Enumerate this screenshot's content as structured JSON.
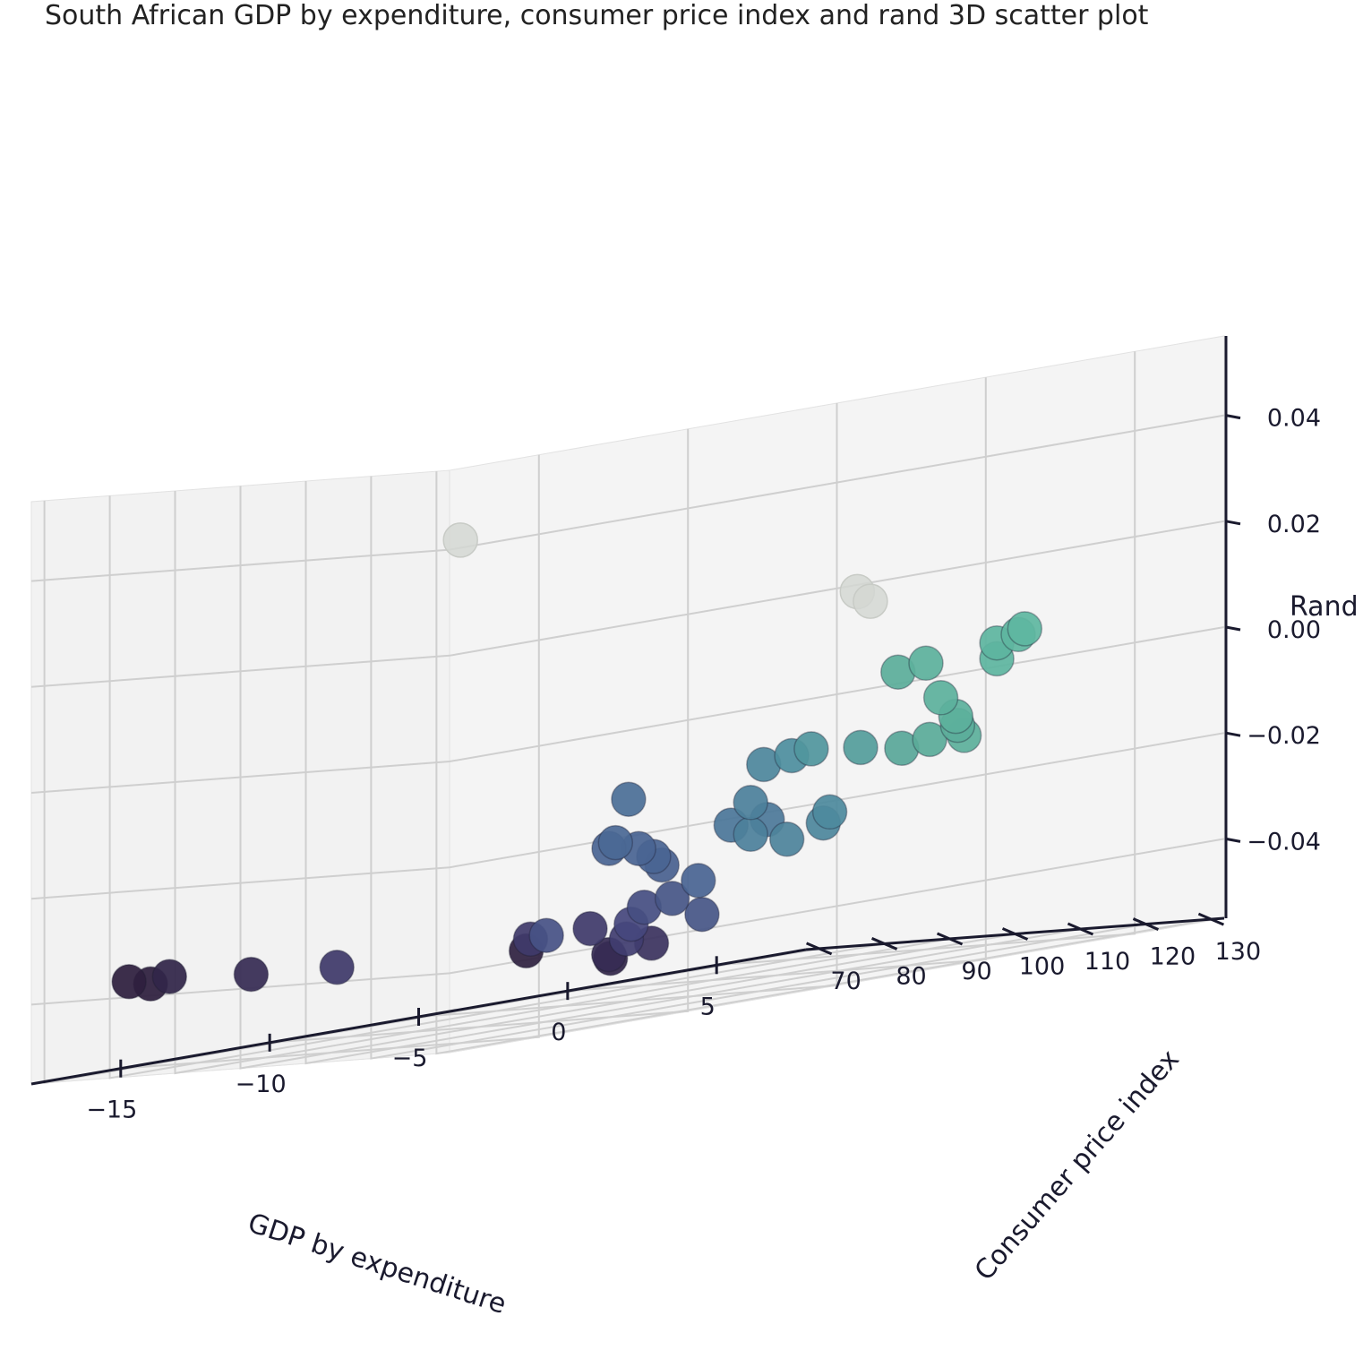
{
  "chart_data": {
    "type": "scatter",
    "projection": "3d",
    "title": "South African GDP by expenditure, consumer price index and rand 3D scatter plot",
    "xlabel": "GDP by expenditure",
    "ylabel": "Consumer price index",
    "zlabel": "Rand",
    "xlim": [
      -18,
      8
    ],
    "ylim": [
      68,
      132
    ],
    "zlim": [
      -0.055,
      0.055
    ],
    "xticks": [
      -15,
      -10,
      -5,
      0,
      5
    ],
    "yticks": [
      70,
      80,
      90,
      100,
      110,
      120,
      130
    ],
    "zticks": [
      -0.04,
      -0.02,
      0.0,
      0.02,
      0.04
    ],
    "xtick_labels": [
      "−15",
      "−10",
      "−5",
      "0",
      "5"
    ],
    "ytick_labels": [
      "70",
      "80",
      "90",
      "100",
      "110",
      "120",
      "130"
    ],
    "ztick_labels": [
      "−0.04",
      "−0.02",
      "0.00",
      "0.02",
      "0.04"
    ],
    "grid": true,
    "colormap": [
      "#2e1f3e",
      "#45437a",
      "#4a6a96",
      "#4e8f9e",
      "#5aaa98",
      "#5fb7a0"
    ],
    "outlier_color": "#d4d7d2",
    "points": [
      {
        "x": 1,
        "y": 70,
        "z": -0.05
      },
      {
        "x": 0.5,
        "y": 72,
        "z": -0.049
      },
      {
        "x": 1.5,
        "y": 74,
        "z": -0.048
      },
      {
        "x": -1.5,
        "y": 68.5,
        "z": -0.046
      },
      {
        "x": 0,
        "y": 77,
        "z": -0.046
      },
      {
        "x": -1,
        "y": 76,
        "z": -0.043
      },
      {
        "x": -0.5,
        "y": 80,
        "z": -0.043
      },
      {
        "x": 1,
        "y": 84,
        "z": -0.043
      },
      {
        "x": -3,
        "y": 76,
        "z": -0.043
      },
      {
        "x": -0.5,
        "y": 82,
        "z": -0.04
      },
      {
        "x": 0,
        "y": 84,
        "z": -0.039
      },
      {
        "x": -4,
        "y": 83,
        "z": -0.042
      },
      {
        "x": -9.5,
        "y": 76,
        "z": -0.042
      },
      {
        "x": -11.5,
        "y": 72,
        "z": -0.041
      },
      {
        "x": -14,
        "y": 68,
        "z": -0.04
      },
      {
        "x": -13.8,
        "y": 70,
        "z": -0.039
      },
      {
        "x": -14.5,
        "y": 67,
        "z": -0.039
      },
      {
        "x": 0,
        "y": 88,
        "z": -0.036
      },
      {
        "x": -1,
        "y": 87,
        "z": -0.032
      },
      {
        "x": -1.5,
        "y": 88,
        "z": -0.03
      },
      {
        "x": -2,
        "y": 88,
        "z": -0.028
      },
      {
        "x": -3,
        "y": 88,
        "z": -0.027
      },
      {
        "x": -3,
        "y": 89,
        "z": -0.026
      },
      {
        "x": 0,
        "y": 93,
        "z": -0.026
      },
      {
        "x": 1,
        "y": 94,
        "z": -0.026
      },
      {
        "x": 0,
        "y": 96,
        "z": -0.028
      },
      {
        "x": 1,
        "y": 97,
        "z": -0.03
      },
      {
        "x": 2,
        "y": 98,
        "z": -0.028
      },
      {
        "x": 2,
        "y": 99,
        "z": -0.026
      },
      {
        "x": 0,
        "y": 96,
        "z": -0.022
      },
      {
        "x": -3,
        "y": 91,
        "z": -0.018
      },
      {
        "x": 0,
        "y": 98,
        "z": -0.015
      },
      {
        "x": 0.5,
        "y": 100,
        "z": -0.014
      },
      {
        "x": 0.5,
        "y": 103,
        "z": -0.013
      },
      {
        "x": 1.5,
        "y": 106,
        "z": -0.014
      },
      {
        "x": 2,
        "y": 110,
        "z": -0.015
      },
      {
        "x": 2.5,
        "y": 112,
        "z": -0.014
      },
      {
        "x": 3,
        "y": 115,
        "z": -0.014
      },
      {
        "x": 3,
        "y": 114,
        "z": -0.012
      },
      {
        "x": 2.5,
        "y": 116,
        "z": -0.01
      },
      {
        "x": 2,
        "y": 116,
        "z": -0.006
      },
      {
        "x": 1,
        "y": 114,
        "z": 0.0
      },
      {
        "x": 1.5,
        "y": 116,
        "z": 0.001
      },
      {
        "x": 3,
        "y": 120,
        "z": 0.0
      },
      {
        "x": 3,
        "y": 120,
        "z": 0.003
      },
      {
        "x": 3.5,
        "y": 121,
        "z": 0.004
      },
      {
        "x": 3.5,
        "y": 122,
        "z": 0.005
      },
      {
        "x": -15,
        "y": 120,
        "z": 0.04
      },
      {
        "x": -3,
        "y": 126,
        "z": 0.018
      },
      {
        "x": -3,
        "y": 128,
        "z": 0.016
      }
    ]
  }
}
